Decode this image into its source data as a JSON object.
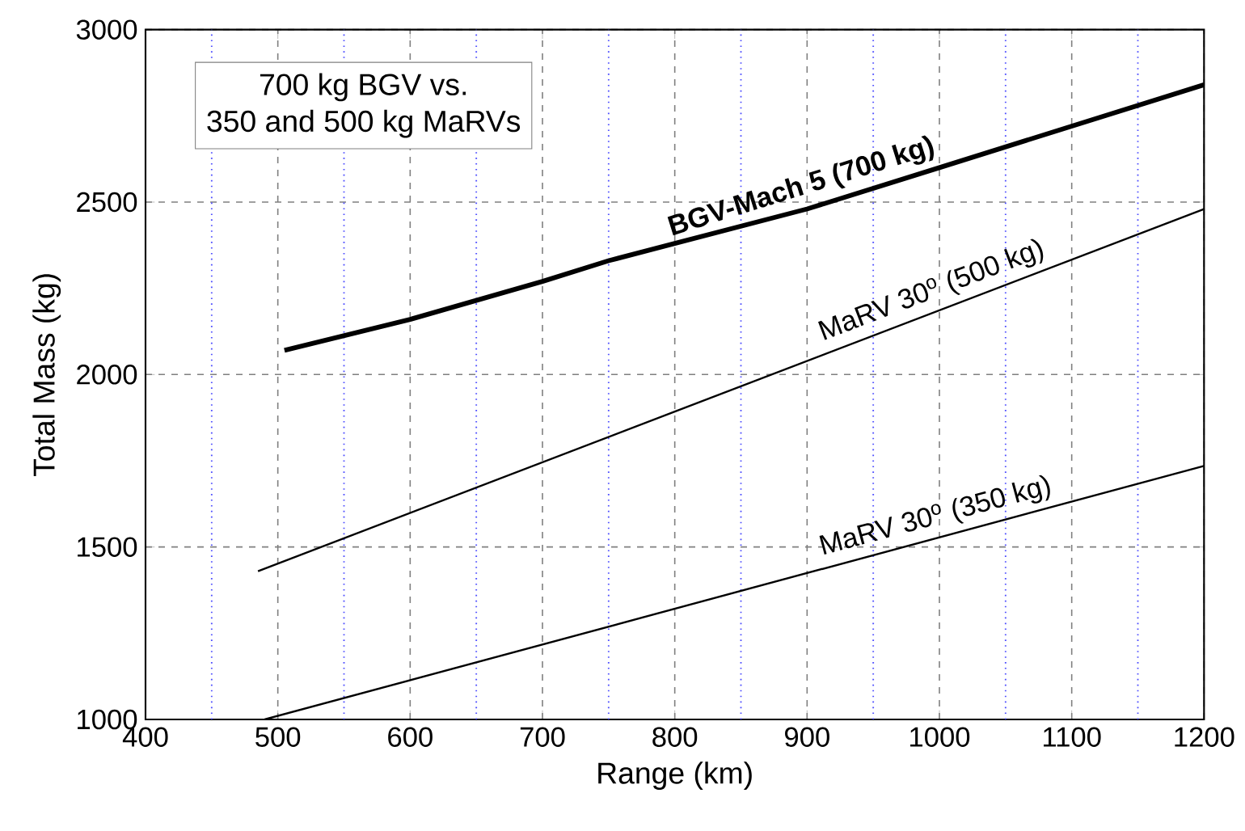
{
  "chart_data": {
    "type": "line",
    "title": "700 kg BGV vs.",
    "subtitle": "350 and 500 kg MaRVs",
    "xlabel": "Range (km)",
    "ylabel": "Total Mass (kg)",
    "xlim": [
      400,
      1200
    ],
    "ylim": [
      1000,
      3000
    ],
    "xticks": [
      400,
      {
        "value": 450,
        "label": null
      },
      500,
      {
        "value": 550,
        "label": null
      },
      600,
      {
        "value": 650,
        "label": null
      },
      700,
      {
        "value": 750,
        "label": null
      },
      800,
      {
        "value": 850,
        "label": null
      },
      900,
      {
        "value": 950,
        "label": null
      },
      1000,
      {
        "value": 1050,
        "label": null
      },
      1100,
      {
        "value": 1150,
        "label": null
      },
      1200
    ],
    "yticks": [
      1000,
      1500,
      2000,
      2500,
      3000
    ],
    "grid": true,
    "series": [
      {
        "name": "BGV-Mach 5 (700 kg)",
        "color": "#000000",
        "x": [
          505,
          600,
          700,
          750,
          800,
          900,
          1000,
          1100,
          1200
        ],
        "values": [
          2070,
          2160,
          2270,
          2330,
          2380,
          2480,
          2600,
          2720,
          2840
        ]
      },
      {
        "name": "MaRV 30$^{o}$ (500 kg)",
        "color": "#000000",
        "x": [
          485,
          1200
        ],
        "values": [
          1430,
          2480
        ]
      },
      {
        "name": "MaRV 30$^{o}$ (350 kg)",
        "color": "#000000",
        "x": [
          490,
          1200
        ],
        "values": [
          1000,
          1735
        ]
      }
    ]
  }
}
